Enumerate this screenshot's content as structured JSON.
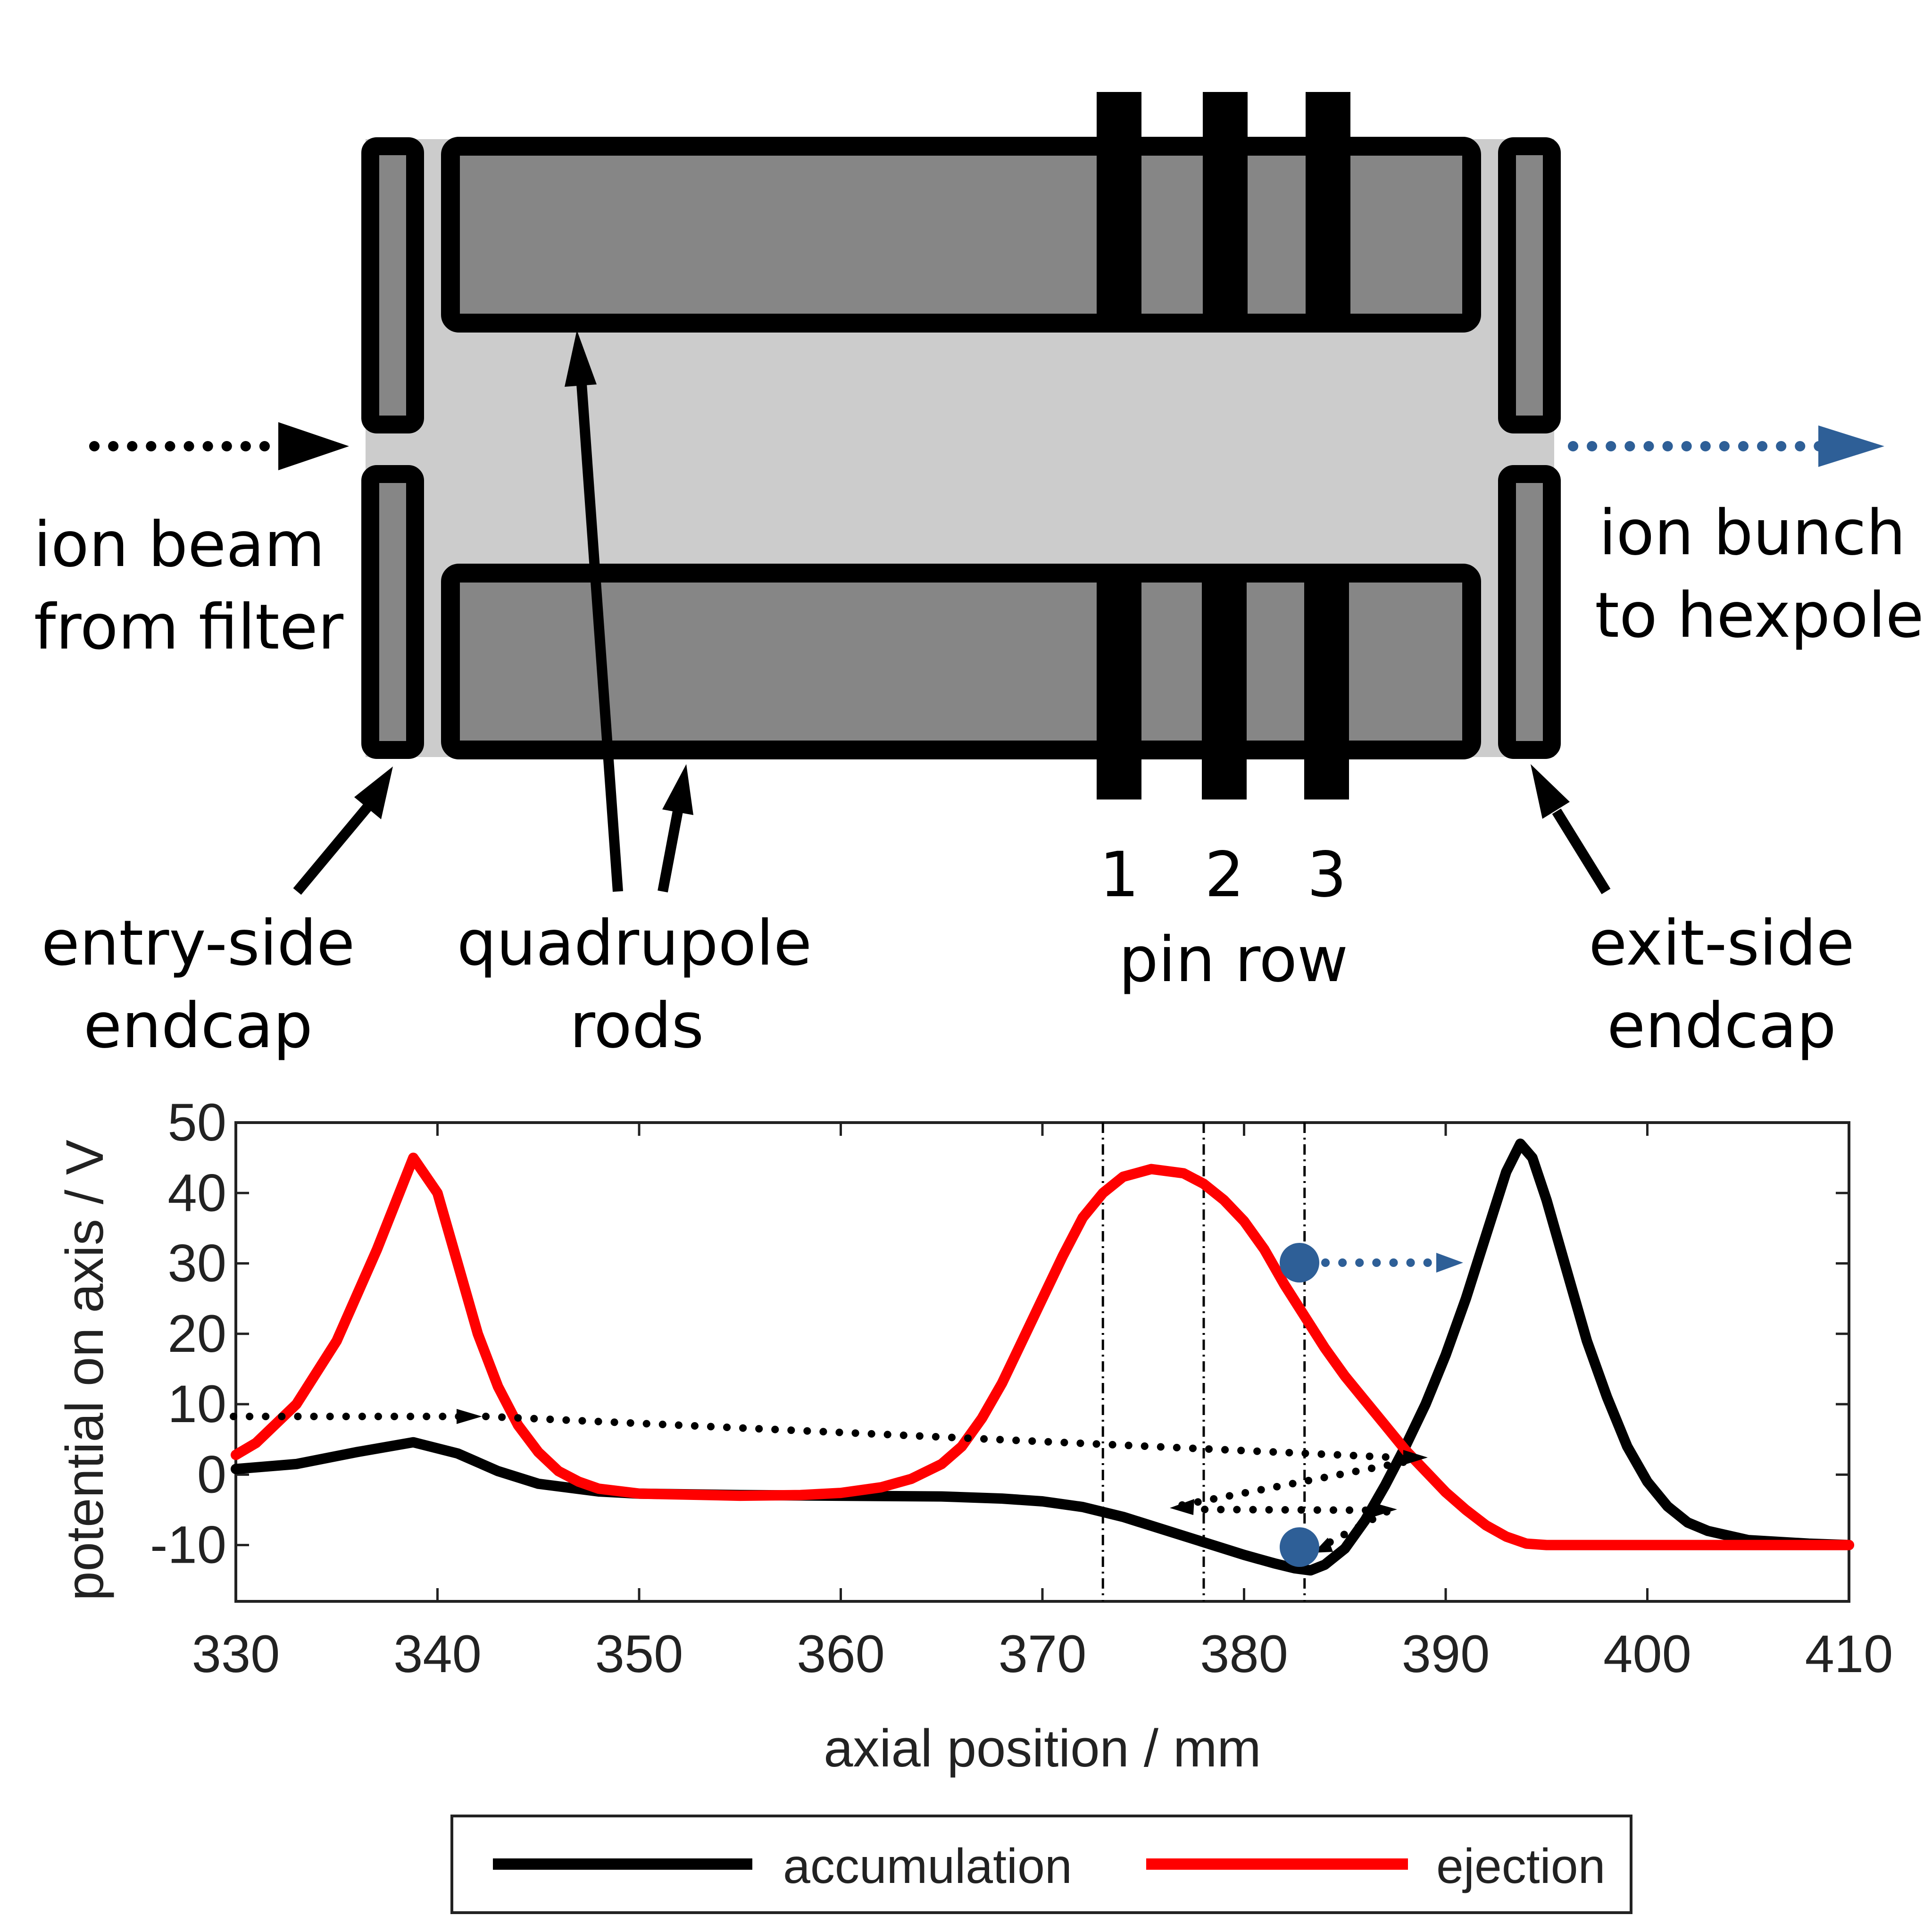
{
  "diagram": {
    "labels": {
      "ion_beam_line1": "ion beam",
      "ion_beam_line2": "from filter",
      "ion_bunch_line1": "ion bunch",
      "ion_bunch_line2": "to hexpole",
      "entry_endcap_line1": "entry-side",
      "entry_endcap_line2": "endcap",
      "quad_rods_line1": "quadrupole",
      "quad_rods_line2": "rods",
      "pin1": "1",
      "pin2": "2",
      "pin3": "3",
      "pin_row": "pin row",
      "exit_endcap_line1": "exit-side",
      "exit_endcap_line2": "endcap"
    },
    "colors": {
      "rod_fill": "#868686",
      "trap_interior": "#cccccc",
      "outline": "#000000",
      "bunch_arrow": "#2e5f97"
    }
  },
  "chart_data": {
    "type": "line",
    "xlabel": "axial position / mm",
    "ylabel": "potential on axis / V",
    "xlim": [
      330,
      410
    ],
    "ylim": [
      -18,
      50
    ],
    "xticks": [
      "330",
      "340",
      "350",
      "360",
      "370",
      "380",
      "390",
      "400",
      "410"
    ],
    "yticks": [
      "50",
      "40",
      "30",
      "20",
      "10",
      "0",
      "-10"
    ],
    "grid": false,
    "legend_position": "bottom-center",
    "pin_positions_mm": [
      373,
      378,
      383
    ],
    "series": [
      {
        "name": "accumulation",
        "color": "#000000",
        "points": [
          [
            330,
            0.8
          ],
          [
            333,
            1.5
          ],
          [
            336,
            3.2
          ],
          [
            338.8,
            4.6
          ],
          [
            341,
            3.0
          ],
          [
            343,
            0.5
          ],
          [
            345,
            -1.3
          ],
          [
            348,
            -2.4
          ],
          [
            350,
            -2.7
          ],
          [
            355,
            -2.9
          ],
          [
            360,
            -3.0
          ],
          [
            365,
            -3.1
          ],
          [
            368,
            -3.4
          ],
          [
            370,
            -3.8
          ],
          [
            372,
            -4.6
          ],
          [
            374,
            -6.0
          ],
          [
            376,
            -7.8
          ],
          [
            378,
            -9.6
          ],
          [
            380,
            -11.4
          ],
          [
            381.5,
            -12.6
          ],
          [
            382.5,
            -13.3
          ],
          [
            383.3,
            -13.6
          ],
          [
            384,
            -12.8
          ],
          [
            385,
            -10.5
          ],
          [
            386,
            -6.5
          ],
          [
            387,
            -1.5
          ],
          [
            388,
            4.0
          ],
          [
            389,
            10.0
          ],
          [
            390,
            17.0
          ],
          [
            391,
            25.0
          ],
          [
            392,
            34.0
          ],
          [
            393,
            43.0
          ],
          [
            393.7,
            47.0
          ],
          [
            394.3,
            45.0
          ],
          [
            395,
            39.0
          ],
          [
            396,
            29.0
          ],
          [
            397,
            19.0
          ],
          [
            398,
            11.0
          ],
          [
            399,
            4.0
          ],
          [
            400,
            -1.0
          ],
          [
            401,
            -4.5
          ],
          [
            402,
            -6.8
          ],
          [
            403,
            -8.0
          ],
          [
            405,
            -9.3
          ],
          [
            408,
            -9.8
          ],
          [
            410,
            -10.0
          ]
        ]
      },
      {
        "name": "ejection",
        "color": "#ff0000",
        "points": [
          [
            330,
            2.8
          ],
          [
            331,
            4.5
          ],
          [
            333,
            10.0
          ],
          [
            335,
            19.0
          ],
          [
            337,
            32.0
          ],
          [
            338.8,
            45.0
          ],
          [
            340,
            40.0
          ],
          [
            341,
            30.0
          ],
          [
            342,
            20.0
          ],
          [
            343,
            12.5
          ],
          [
            344,
            7.0
          ],
          [
            345,
            3.2
          ],
          [
            346,
            0.5
          ],
          [
            347,
            -1.0
          ],
          [
            348,
            -2.0
          ],
          [
            350,
            -2.7
          ],
          [
            355,
            -3.0
          ],
          [
            358,
            -2.9
          ],
          [
            360,
            -2.6
          ],
          [
            362,
            -1.8
          ],
          [
            363.5,
            -0.6
          ],
          [
            365,
            1.5
          ],
          [
            366,
            4.0
          ],
          [
            367,
            8.0
          ],
          [
            368,
            13.0
          ],
          [
            369,
            19.0
          ],
          [
            370,
            25.0
          ],
          [
            371,
            31.0
          ],
          [
            372,
            36.5
          ],
          [
            373,
            40.0
          ],
          [
            374,
            42.3
          ],
          [
            375.4,
            43.4
          ],
          [
            377,
            42.8
          ],
          [
            378,
            41.3
          ],
          [
            379,
            39.0
          ],
          [
            380,
            36.0
          ],
          [
            381,
            32.0
          ],
          [
            382,
            27.0
          ],
          [
            383,
            22.5
          ],
          [
            384,
            18.0
          ],
          [
            385,
            14.0
          ],
          [
            386,
            10.5
          ],
          [
            387,
            7.0
          ],
          [
            388,
            3.5
          ],
          [
            389,
            0.5
          ],
          [
            390,
            -2.5
          ],
          [
            391,
            -5.0
          ],
          [
            392,
            -7.2
          ],
          [
            393,
            -8.8
          ],
          [
            394,
            -9.8
          ],
          [
            395,
            -10.0
          ],
          [
            400,
            -10.0
          ],
          [
            410,
            -10.0
          ]
        ]
      }
    ]
  }
}
